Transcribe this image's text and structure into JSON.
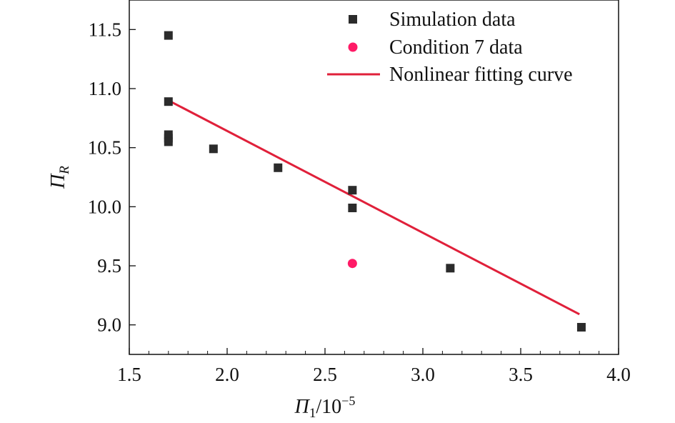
{
  "chart_data": {
    "type": "scatter",
    "xlabel": {
      "symbol": "Π",
      "subscript": "1",
      "suffix": "/10",
      "superscript": "−5"
    },
    "ylabel": {
      "symbol": "Π",
      "subscript": "R"
    },
    "xlim": [
      1.5,
      4.0
    ],
    "ylim": [
      8.75,
      11.75
    ],
    "xticks": [
      1.5,
      2.0,
      2.5,
      3.0,
      3.5,
      4.0
    ],
    "xtick_labels": [
      "1.5",
      "2.0",
      "2.5",
      "3.0",
      "3.5",
      "4.0"
    ],
    "yticks": [
      9.0,
      9.5,
      10.0,
      10.5,
      11.0,
      11.5
    ],
    "ytick_labels": [
      "9.0",
      "9.5",
      "10.0",
      "10.5",
      "11.0",
      "11.5"
    ],
    "legend_position": "top-right",
    "grid": false,
    "series": [
      {
        "name": "Simulation data",
        "marker": "square",
        "color": "#2b2b2b",
        "points": [
          [
            1.7,
            11.45
          ],
          [
            1.7,
            10.89
          ],
          [
            1.7,
            10.61
          ],
          [
            1.7,
            10.58
          ],
          [
            1.7,
            10.55
          ],
          [
            1.93,
            10.49
          ],
          [
            2.26,
            10.33
          ],
          [
            2.64,
            10.14
          ],
          [
            2.64,
            9.99
          ],
          [
            3.14,
            9.48
          ],
          [
            3.81,
            8.98
          ]
        ]
      },
      {
        "name": "Condition 7 data",
        "marker": "circle",
        "color": "#ff1a66",
        "points": [
          [
            2.64,
            9.52
          ]
        ]
      },
      {
        "name": "Nonlinear fitting curve",
        "marker": "line",
        "color": "#e0203a",
        "points": [
          [
            1.7,
            10.9
          ],
          [
            3.8,
            9.09
          ]
        ]
      }
    ]
  }
}
